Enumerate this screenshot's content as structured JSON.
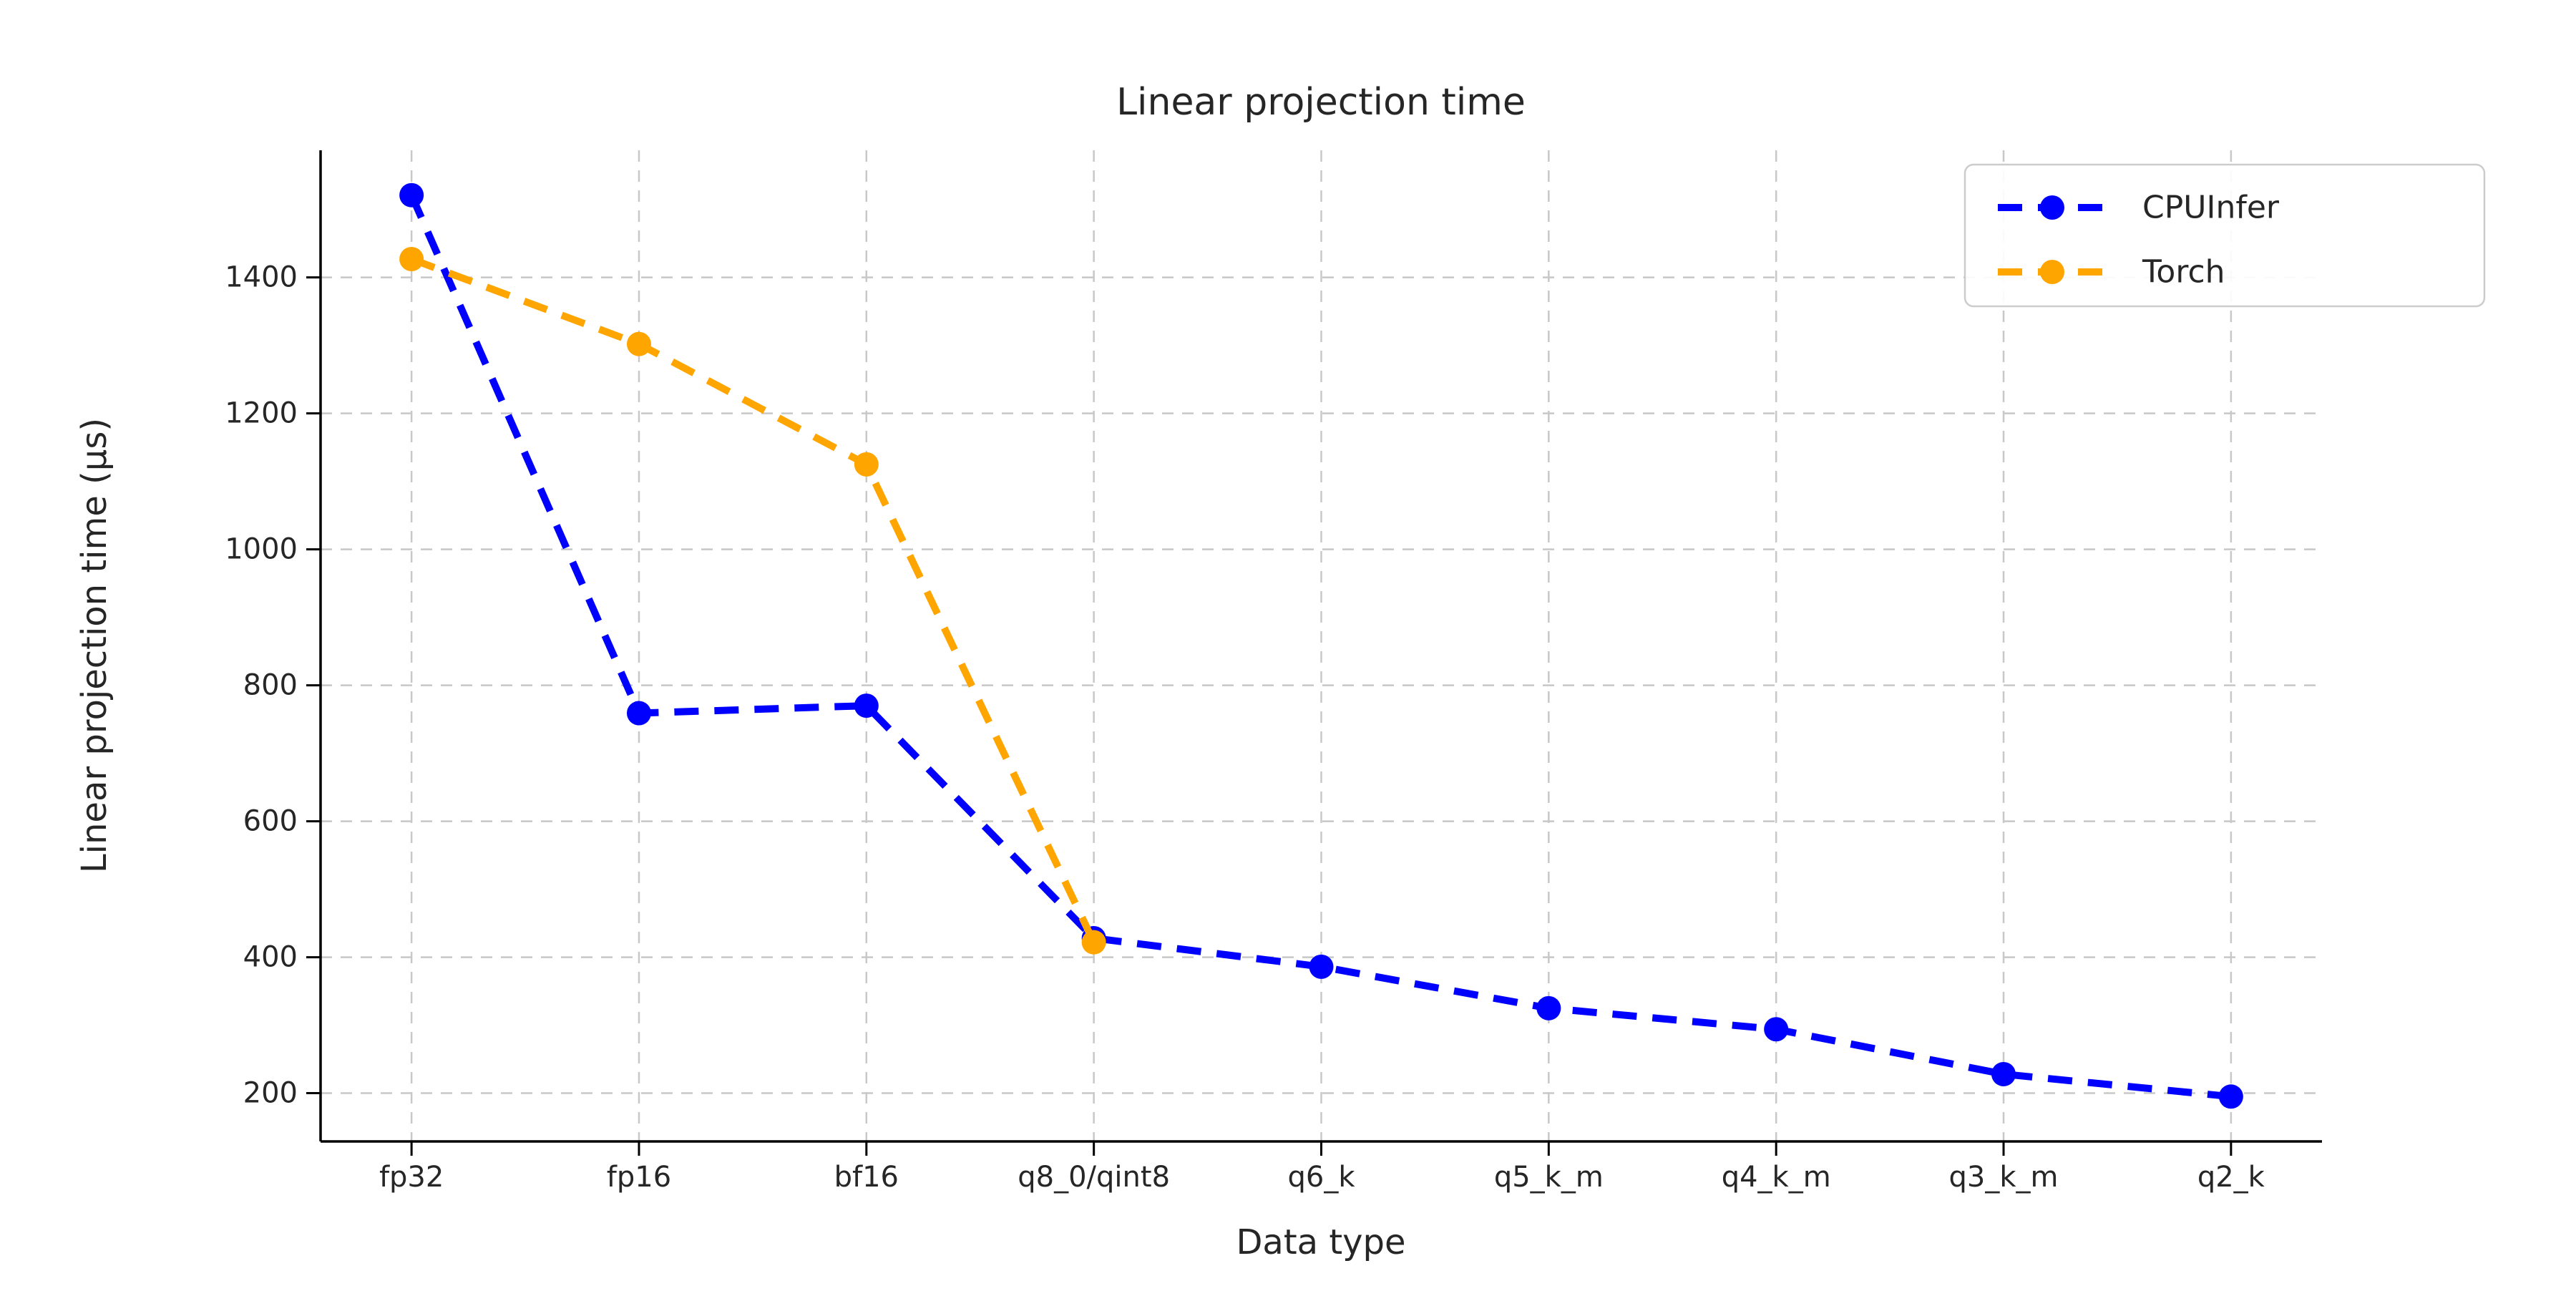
{
  "figure": {
    "background": "#ffffff"
  },
  "chart_data": {
    "type": "line",
    "title": "Linear projection time",
    "xlabel": "Data type",
    "ylabel": "Linear projection time (µs)",
    "categories": [
      "fp32",
      "fp16",
      "bf16",
      "q8_0/qint8",
      "q6_k",
      "q5_k_m",
      "q4_k_m",
      "q3_k_m",
      "q2_k"
    ],
    "series": [
      {
        "name": "CPUInfer",
        "color": "#0000ff",
        "values": [
          1521,
          759,
          770,
          428,
          386,
          325,
          294,
          228,
          195
        ]
      },
      {
        "name": "Torch",
        "color": "#ffa500",
        "values": [
          1427,
          1302,
          1125,
          422,
          null,
          null,
          null,
          null,
          null
        ]
      }
    ],
    "yticks": [
      200,
      400,
      600,
      800,
      1000,
      1200,
      1400
    ],
    "ylim": [
      129,
      1587
    ],
    "grid": true,
    "grid_style": "dashed",
    "line_style": "dashed",
    "marker": "circle",
    "legend_position": "upper-right",
    "legend_entries": [
      "CPUInfer",
      "Torch"
    ]
  },
  "colors": {
    "grid": "#c8c8c8",
    "spine": "#000000",
    "text": "#262626",
    "legend_border": "#cccccc",
    "background": "#ffffff"
  }
}
